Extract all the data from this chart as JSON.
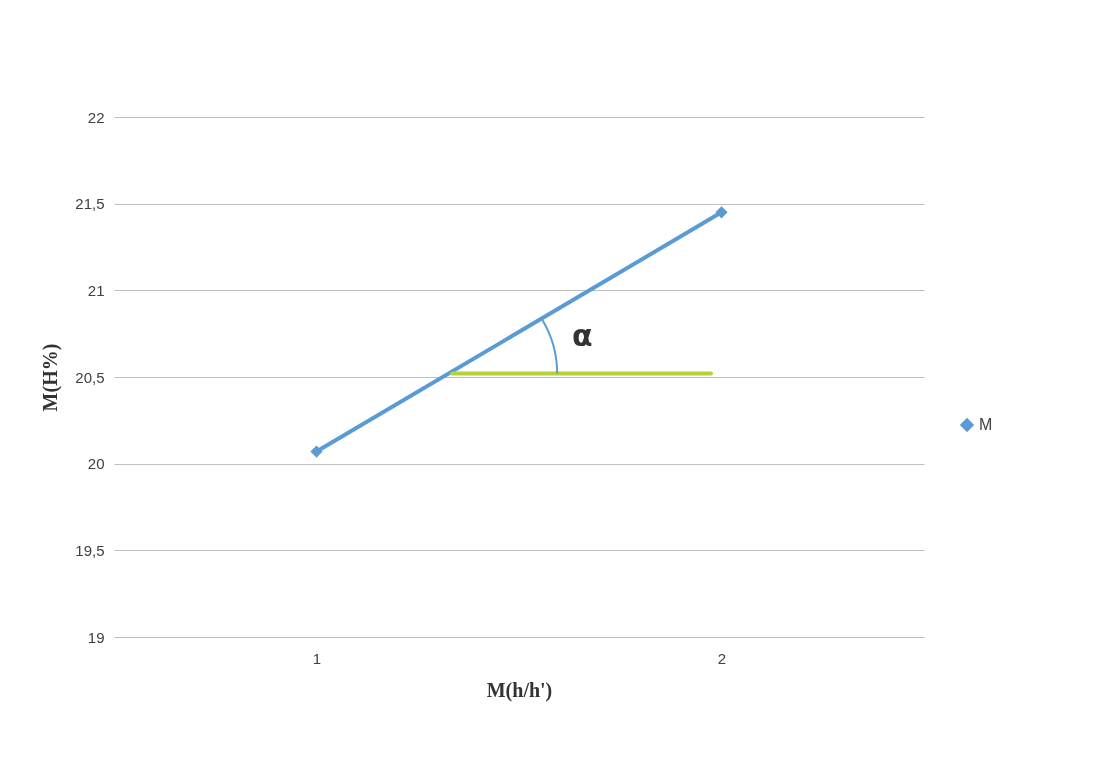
{
  "chart_data": {
    "type": "line",
    "xlabel": "M(h/h')",
    "ylabel": "M(H%)",
    "xlim": [
      0.5,
      2.5
    ],
    "xticks": [
      1,
      2
    ],
    "ylim": [
      19,
      22
    ],
    "yticks": [
      19,
      {
        "value": 19.5,
        "label": "19,5"
      },
      20,
      {
        "value": 20.5,
        "label": "20,5"
      },
      21,
      {
        "value": 21.5,
        "label": "21,5"
      },
      22
    ],
    "grid": "y",
    "legend": "right",
    "line_style": "solid",
    "series": [
      {
        "name": "M",
        "color": "#5b9bd5",
        "marker": "diamond",
        "x": [
          1,
          2
        ],
        "values": [
          20.07,
          21.45
        ]
      },
      {
        "color": "#b5d334",
        "marker": "none",
        "x": [
          1.335,
          1.974
        ],
        "values": [
          20.52,
          20.52
        ]
      }
    ],
    "annotations": [
      "α"
    ]
  }
}
